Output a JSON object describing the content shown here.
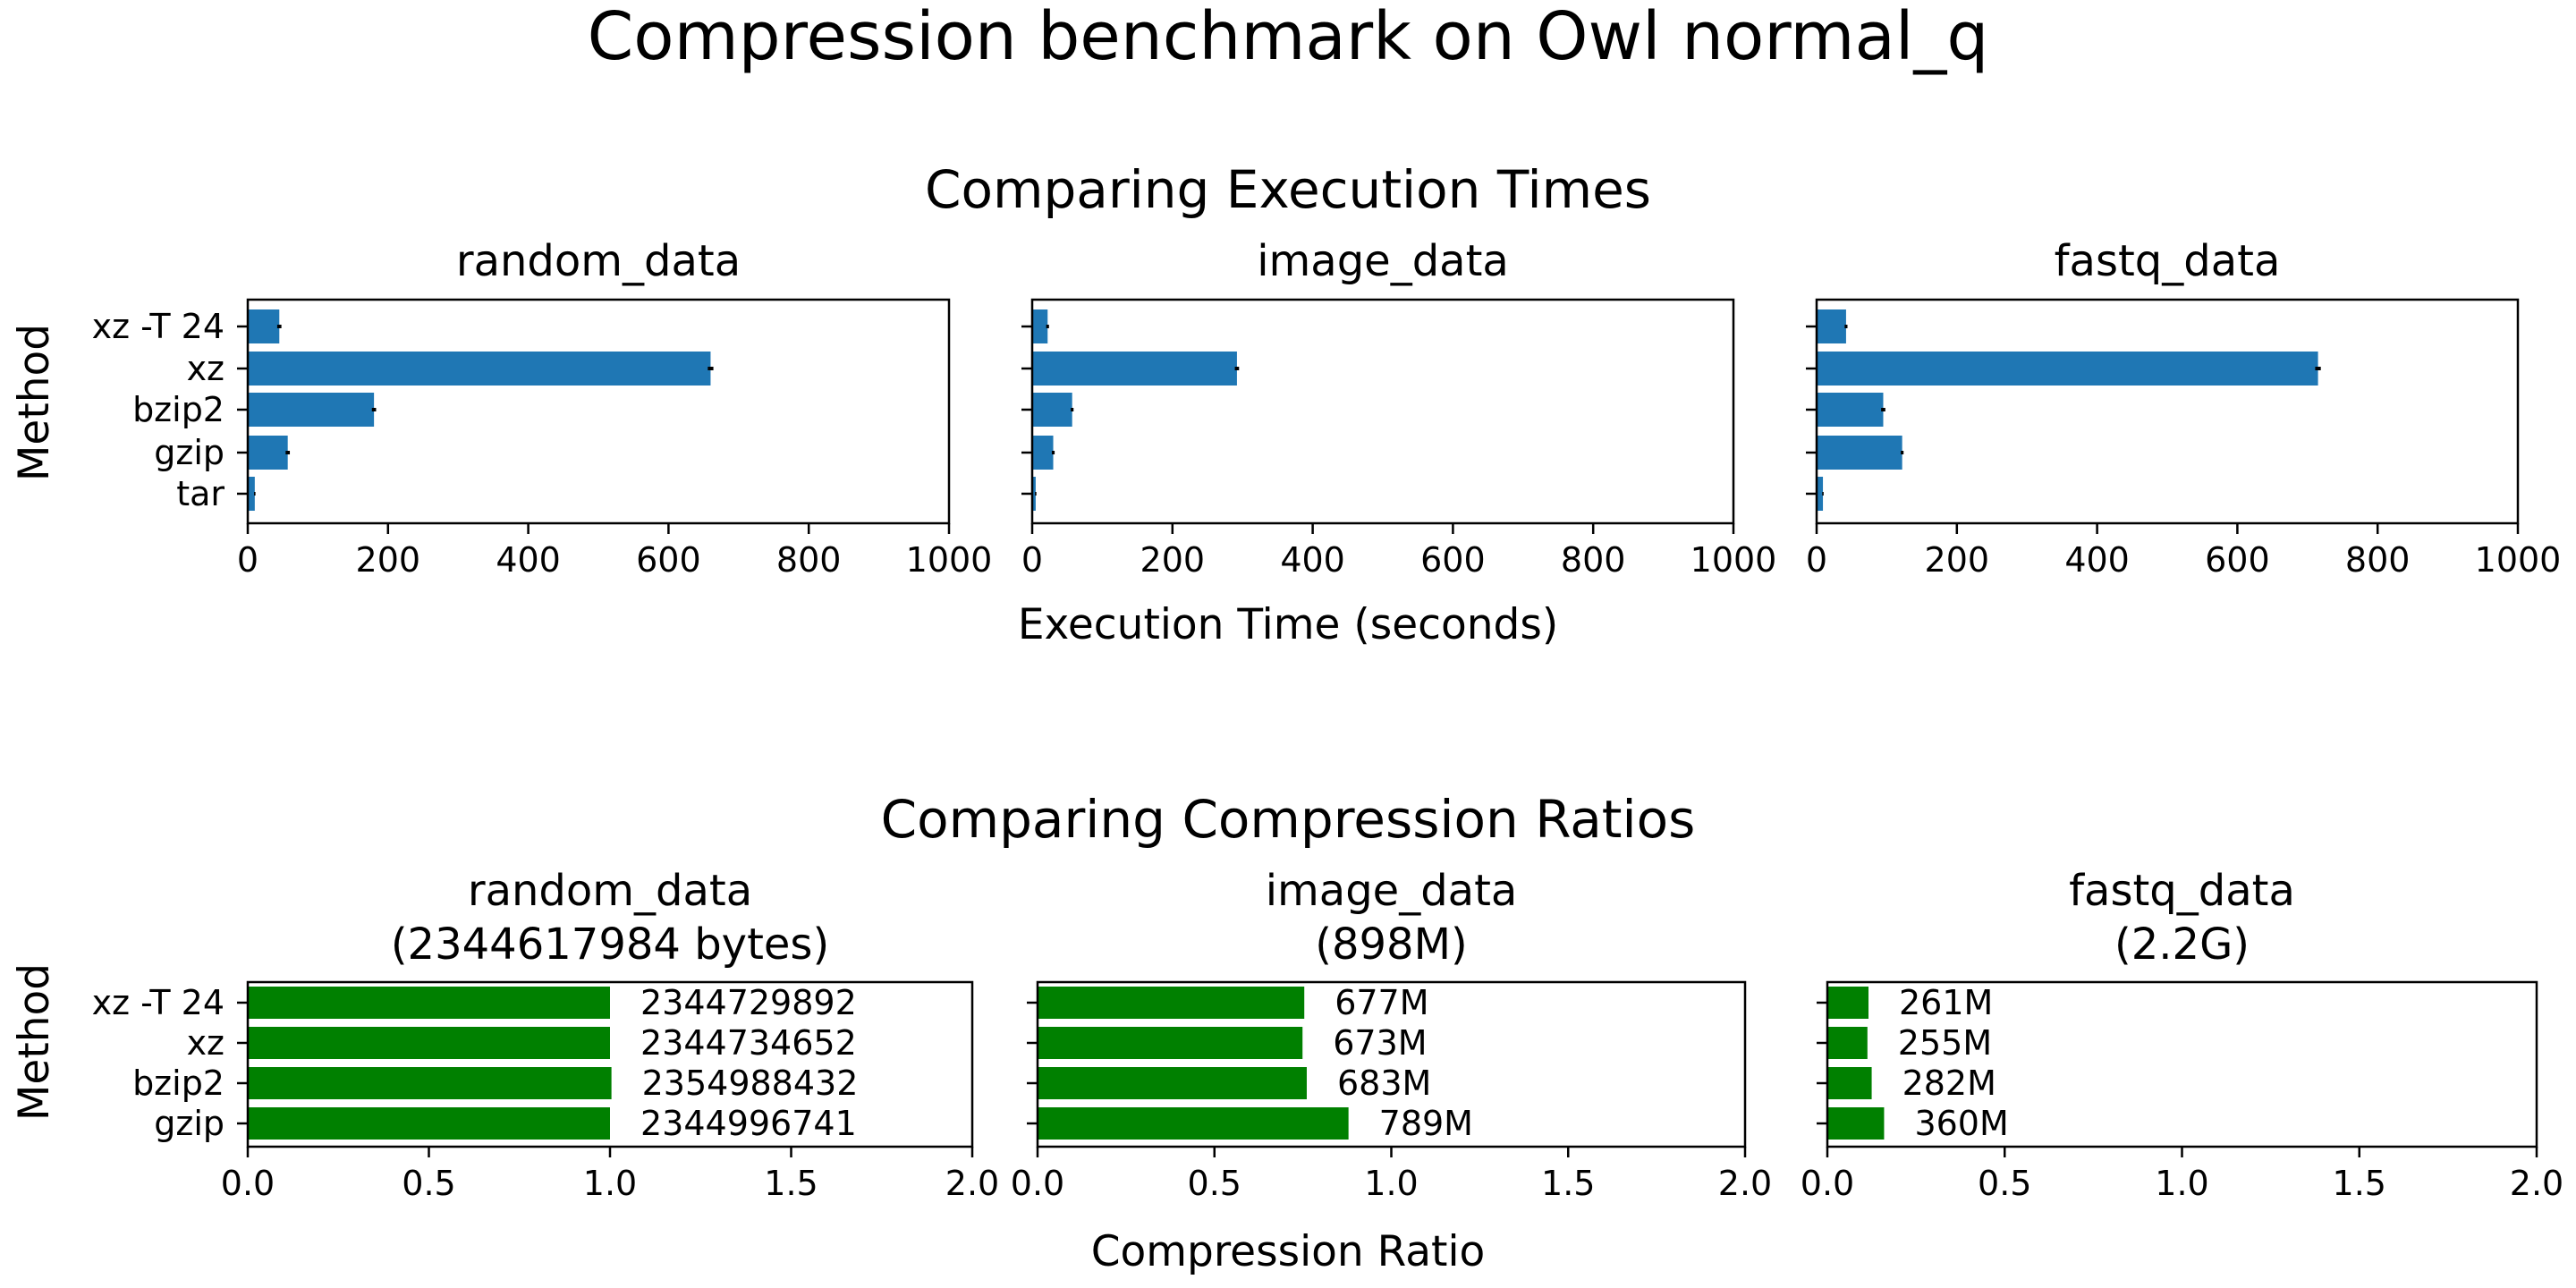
{
  "figure": {
    "title": "Compression benchmark on Owl normal_q"
  },
  "colors": {
    "time_bar": "#1f77b4",
    "ratio_bar": "#008000",
    "error_bar": "#000000"
  },
  "sections": {
    "times": {
      "title": "Comparing Execution Times",
      "xlabel": "Execution Time (seconds)",
      "ylabel": "Method"
    },
    "ratios": {
      "title": "Comparing Compression Ratios",
      "xlabel": "Compression Ratio",
      "ylabel": "Method"
    }
  },
  "chart_data": [
    {
      "type": "bar",
      "orientation": "horizontal",
      "group": "times",
      "title": "random_data",
      "categories": [
        "xz -T 24",
        "xz",
        "bzip2",
        "gzip",
        "tar"
      ],
      "values": [
        45,
        660,
        180,
        57,
        10
      ],
      "errors": [
        3,
        4,
        3,
        3,
        1
      ],
      "xlim": [
        0,
        1000
      ],
      "xticks": [
        0,
        200,
        400,
        600,
        800,
        1000
      ],
      "tick_labels": [
        "0",
        "200",
        "400",
        "600",
        "800",
        "1000"
      ]
    },
    {
      "type": "bar",
      "orientation": "horizontal",
      "group": "times",
      "title": "image_data",
      "categories": [
        "xz -T 24",
        "xz",
        "bzip2",
        "gzip",
        "tar"
      ],
      "values": [
        22,
        292,
        57,
        30,
        5
      ],
      "errors": [
        2,
        3,
        2,
        2,
        1
      ],
      "xlim": [
        0,
        1000
      ],
      "xticks": [
        0,
        200,
        400,
        600,
        800,
        1000
      ],
      "tick_labels": [
        "0",
        "200",
        "400",
        "600",
        "800",
        "1000"
      ]
    },
    {
      "type": "bar",
      "orientation": "horizontal",
      "group": "times",
      "title": "fastq_data",
      "categories": [
        "xz -T 24",
        "xz",
        "bzip2",
        "gzip",
        "tar"
      ],
      "values": [
        42,
        715,
        95,
        122,
        9
      ],
      "errors": [
        2,
        4,
        3,
        2,
        1
      ],
      "xlim": [
        0,
        1000
      ],
      "xticks": [
        0,
        200,
        400,
        600,
        800,
        1000
      ],
      "tick_labels": [
        "0",
        "200",
        "400",
        "600",
        "800",
        "1000"
      ]
    },
    {
      "type": "bar",
      "orientation": "horizontal",
      "group": "ratios",
      "title": "random_data",
      "title_line2": "(2344617984 bytes)",
      "categories": [
        "xz -T 24",
        "xz",
        "bzip2",
        "gzip"
      ],
      "values": [
        1.0,
        1.0,
        1.004,
        1.0
      ],
      "data_labels": [
        "2344729892",
        "2344734652",
        "2354988432",
        "2344996741"
      ],
      "xlim": [
        0,
        2
      ],
      "xticks": [
        0,
        0.5,
        1,
        1.5,
        2
      ],
      "tick_labels": [
        "0.0",
        "0.5",
        "1.0",
        "1.5",
        "2.0"
      ]
    },
    {
      "type": "bar",
      "orientation": "horizontal",
      "group": "ratios",
      "title": "image_data",
      "title_line2": "(898M)",
      "categories": [
        "xz -T 24",
        "xz",
        "bzip2",
        "gzip"
      ],
      "values": [
        0.754,
        0.749,
        0.761,
        0.879
      ],
      "data_labels": [
        "677M",
        "673M",
        "683M",
        "789M"
      ],
      "xlim": [
        0,
        2
      ],
      "xticks": [
        0,
        0.5,
        1,
        1.5,
        2
      ],
      "tick_labels": [
        "0.0",
        "0.5",
        "1.0",
        "1.5",
        "2.0"
      ]
    },
    {
      "type": "bar",
      "orientation": "horizontal",
      "group": "ratios",
      "title": "fastq_data",
      "title_line2": "(2.2G)",
      "categories": [
        "xz -T 24",
        "xz",
        "bzip2",
        "gzip"
      ],
      "values": [
        0.116,
        0.113,
        0.125,
        0.16
      ],
      "data_labels": [
        "261M",
        "255M",
        "282M",
        "360M"
      ],
      "xlim": [
        0,
        2
      ],
      "xticks": [
        0,
        0.5,
        1,
        1.5,
        2
      ],
      "tick_labels": [
        "0.0",
        "0.5",
        "1.0",
        "1.5",
        "2.0"
      ]
    }
  ]
}
